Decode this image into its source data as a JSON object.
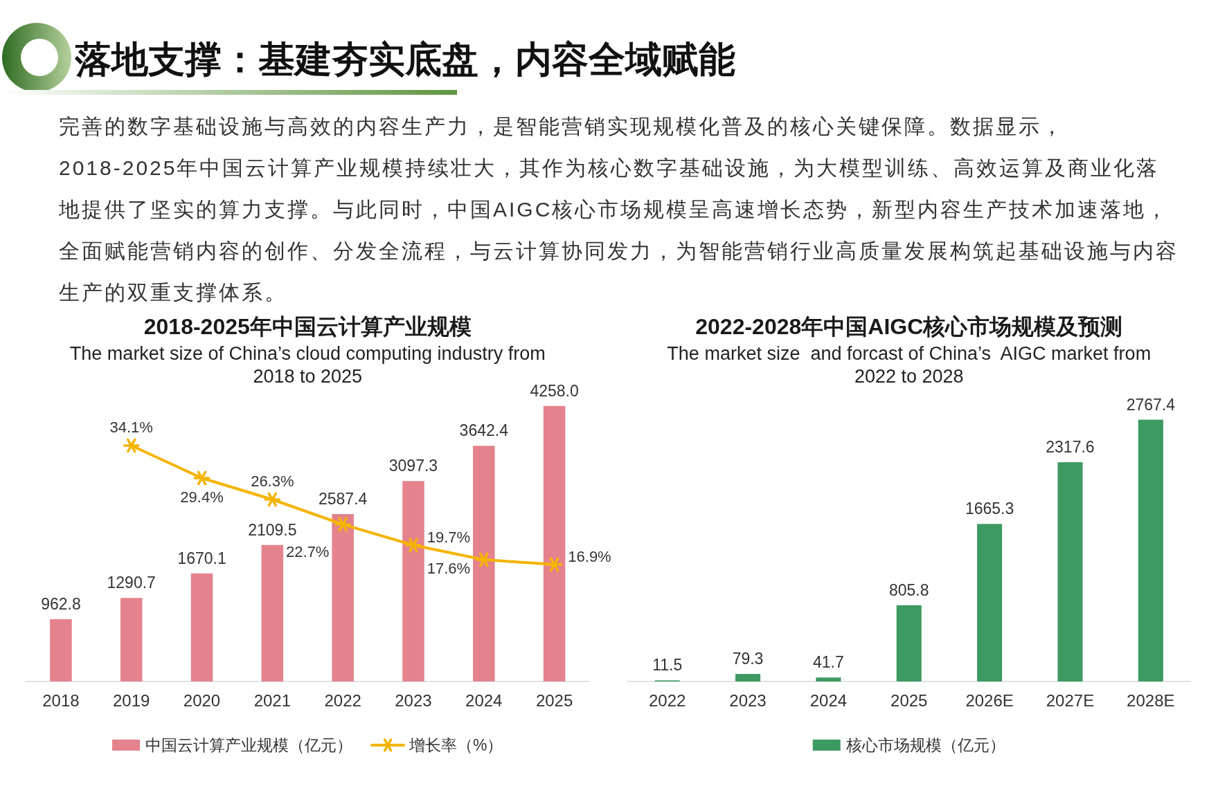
{
  "chart_data": [
    {
      "type": "other",
      "title": "落地支撑：基建夯实底盘，内容全域赋能",
      "annotations": [
        "完善的数字基础设施与高效的内容生产力，是智能营销实现规模化普及的核心关键保障。数据显示，2018-2025年中国云计算产业规模持续壮大，其作为核心数字基础设施，为大模型训练、高效运算及商业化落地提供了坚实的算力支撑。与此同时，中国AIGC核心市场规模呈高速增长态势，新型内容生产技术加速落地，全面赋能营销内容的创作、分发全流程，与云计算协同发力，为智能营销行业高质量发展构筑起基础设施与内容生产的双重支撑体系。"
      ]
    },
    {
      "type": "bar",
      "title": "2018-2025年中国云计算产业规模",
      "subtitle": "The market size of China’s cloud computing industry from 2018 to 2025",
      "categories": [
        "2018",
        "2019",
        "2020",
        "2021",
        "2022",
        "2023",
        "2024",
        "2025"
      ],
      "series": [
        {
          "name": "中国云计算产业规模（亿元）",
          "type": "bar",
          "color": "#e4838d",
          "values": [
            962.8,
            1290.7,
            1670.1,
            2109.5,
            2587.4,
            3097.3,
            3642.4,
            4258.0
          ],
          "value_labels": [
            "962.8",
            "1290.7",
            "1670.1",
            "2109.5",
            "2587.4",
            "3097.3",
            "3642.4",
            "4258.0"
          ]
        },
        {
          "name": "增长率（%）",
          "type": "line",
          "axis": "y2",
          "color": "#f5b400",
          "values": [
            null,
            34.1,
            29.4,
            26.3,
            22.7,
            19.7,
            17.6,
            16.9
          ],
          "value_labels": [
            null,
            "34.1%",
            "29.4%",
            "26.3%",
            "22.7%",
            "19.7%",
            "17.6%",
            "16.9%"
          ]
        }
      ],
      "marker": "cross",
      "legend": "bottom",
      "tick_labels": "x"
    },
    {
      "type": "bar",
      "title": "2022-2028年中国AIGC核心市场规模及预测",
      "subtitle": "The market size  and forcast of China’s  AIGC market from 2022 to 2028",
      "categories": [
        "2022",
        "2023",
        "2024",
        "2025",
        "2026E",
        "2027E",
        "2028E"
      ],
      "series": [
        {
          "name": "核心市场规模（亿元）",
          "color": "#3d9a62",
          "values": [
            11.5,
            79.3,
            41.7,
            805.8,
            1665.3,
            2317.6,
            2767.4
          ]
        }
      ],
      "data_labels": true,
      "legend": "bottom",
      "tick_labels": "x"
    }
  ]
}
